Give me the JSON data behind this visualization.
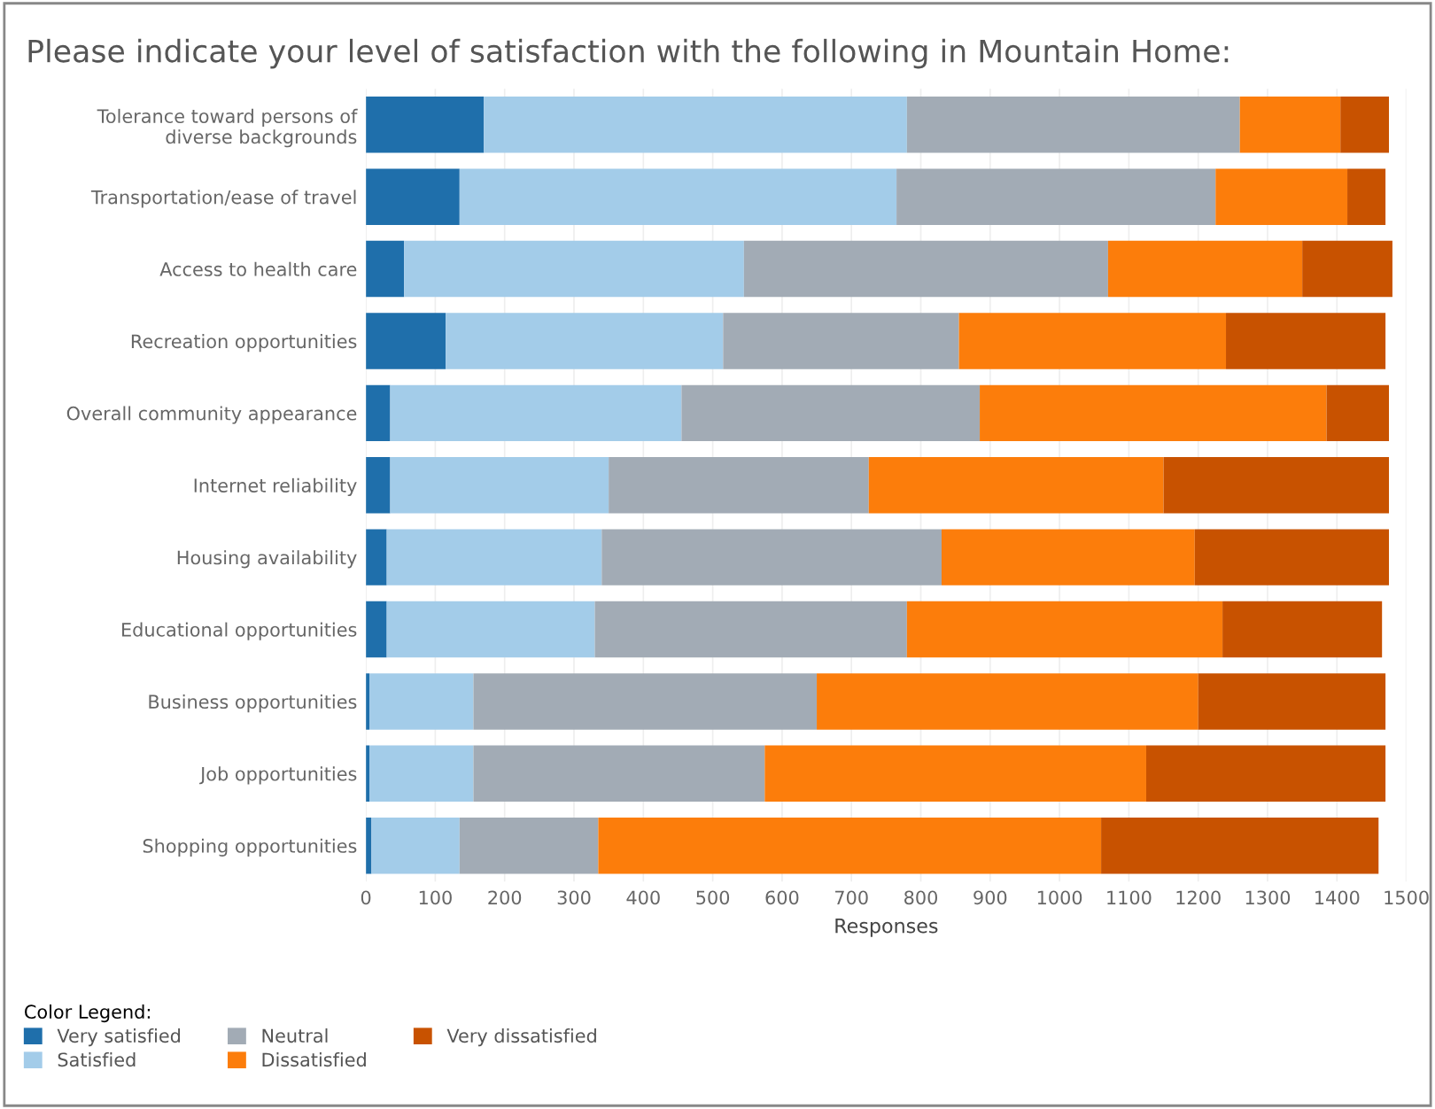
{
  "chart_data": {
    "type": "bar",
    "orientation": "horizontal",
    "stacked": true,
    "title": "Please indicate your level of satisfaction with the following in Mountain Home:",
    "xlabel": "Responses",
    "legend_title": "Color Legend:",
    "legend": "bottom left",
    "grid": "x",
    "categories": [
      "Tolerance toward persons of\ndiverse backgrounds",
      "Transportation/ease of travel",
      "Access to health care",
      "Recreation opportunities",
      "Overall community appearance",
      "Internet reliability",
      "Housing availability",
      "Educational opportunities",
      "Business opportunities",
      "Job opportunities",
      "Shopping opportunities"
    ],
    "xlim": [
      0,
      1500
    ],
    "xticks": [
      0,
      100,
      200,
      300,
      400,
      500,
      600,
      700,
      800,
      900,
      1000,
      1100,
      1200,
      1300,
      1400,
      1500
    ],
    "series": [
      {
        "name": "Very satisfied",
        "color": "#1f6fab",
        "values": [
          170,
          135,
          55,
          115,
          35,
          35,
          30,
          30,
          5,
          5,
          8
        ]
      },
      {
        "name": "Satisfied",
        "color": "#a3cce9",
        "values": [
          610,
          630,
          490,
          400,
          420,
          315,
          310,
          300,
          150,
          150,
          127
        ]
      },
      {
        "name": "Neutral",
        "color": "#a2abb5",
        "values": [
          480,
          460,
          525,
          340,
          430,
          375,
          490,
          450,
          495,
          420,
          200
        ]
      },
      {
        "name": "Dissatisfied",
        "color": "#fc7d0b",
        "values": [
          145,
          190,
          280,
          385,
          500,
          425,
          365,
          455,
          550,
          550,
          725
        ]
      },
      {
        "name": "Very dissatisfied",
        "color": "#c85200",
        "values": [
          70,
          55,
          130,
          230,
          90,
          325,
          280,
          230,
          270,
          345,
          400
        ]
      }
    ]
  }
}
